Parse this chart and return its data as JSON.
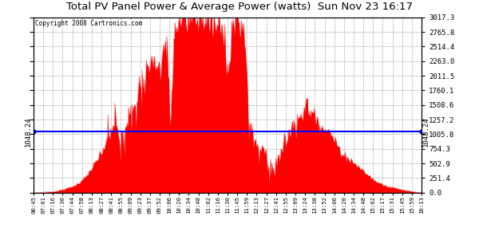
{
  "title": "Total PV Panel Power & Average Power (watts)  Sun Nov 23 16:17",
  "copyright": "Copyright 2008 Cartronics.com",
  "average_power": 1048.24,
  "ymax": 3017.3,
  "yticks": [
    0.0,
    251.4,
    502.9,
    754.3,
    1005.8,
    1257.2,
    1508.6,
    1760.1,
    2011.5,
    2263.0,
    2514.4,
    2765.8,
    3017.3
  ],
  "ylabels_right": [
    "0.0",
    "251.4",
    "502.9",
    "754.3",
    "1005.8",
    "1257.2",
    "1508.6",
    "1760.1",
    "2011.5",
    "2263.0",
    "2514.4",
    "2765.8",
    "3017.3"
  ],
  "avg_label": "1048.24",
  "bg_color": "#ffffff",
  "fill_color": "#ff0000",
  "avg_line_color": "#0000ff",
  "grid_color": "#888888",
  "title_color": "#000000",
  "xtick_labels": [
    "06:45",
    "07:01",
    "07:16",
    "07:30",
    "07:44",
    "07:58",
    "08:13",
    "08:27",
    "08:41",
    "08:55",
    "09:09",
    "09:23",
    "09:37",
    "09:52",
    "10:06",
    "10:20",
    "10:34",
    "10:48",
    "11:02",
    "11:16",
    "11:30",
    "11:45",
    "11:59",
    "12:13",
    "12:27",
    "12:41",
    "12:55",
    "13:09",
    "13:24",
    "13:38",
    "13:52",
    "14:06",
    "14:20",
    "14:34",
    "14:48",
    "15:02",
    "15:17",
    "15:31",
    "15:45",
    "15:59",
    "16:13"
  ]
}
